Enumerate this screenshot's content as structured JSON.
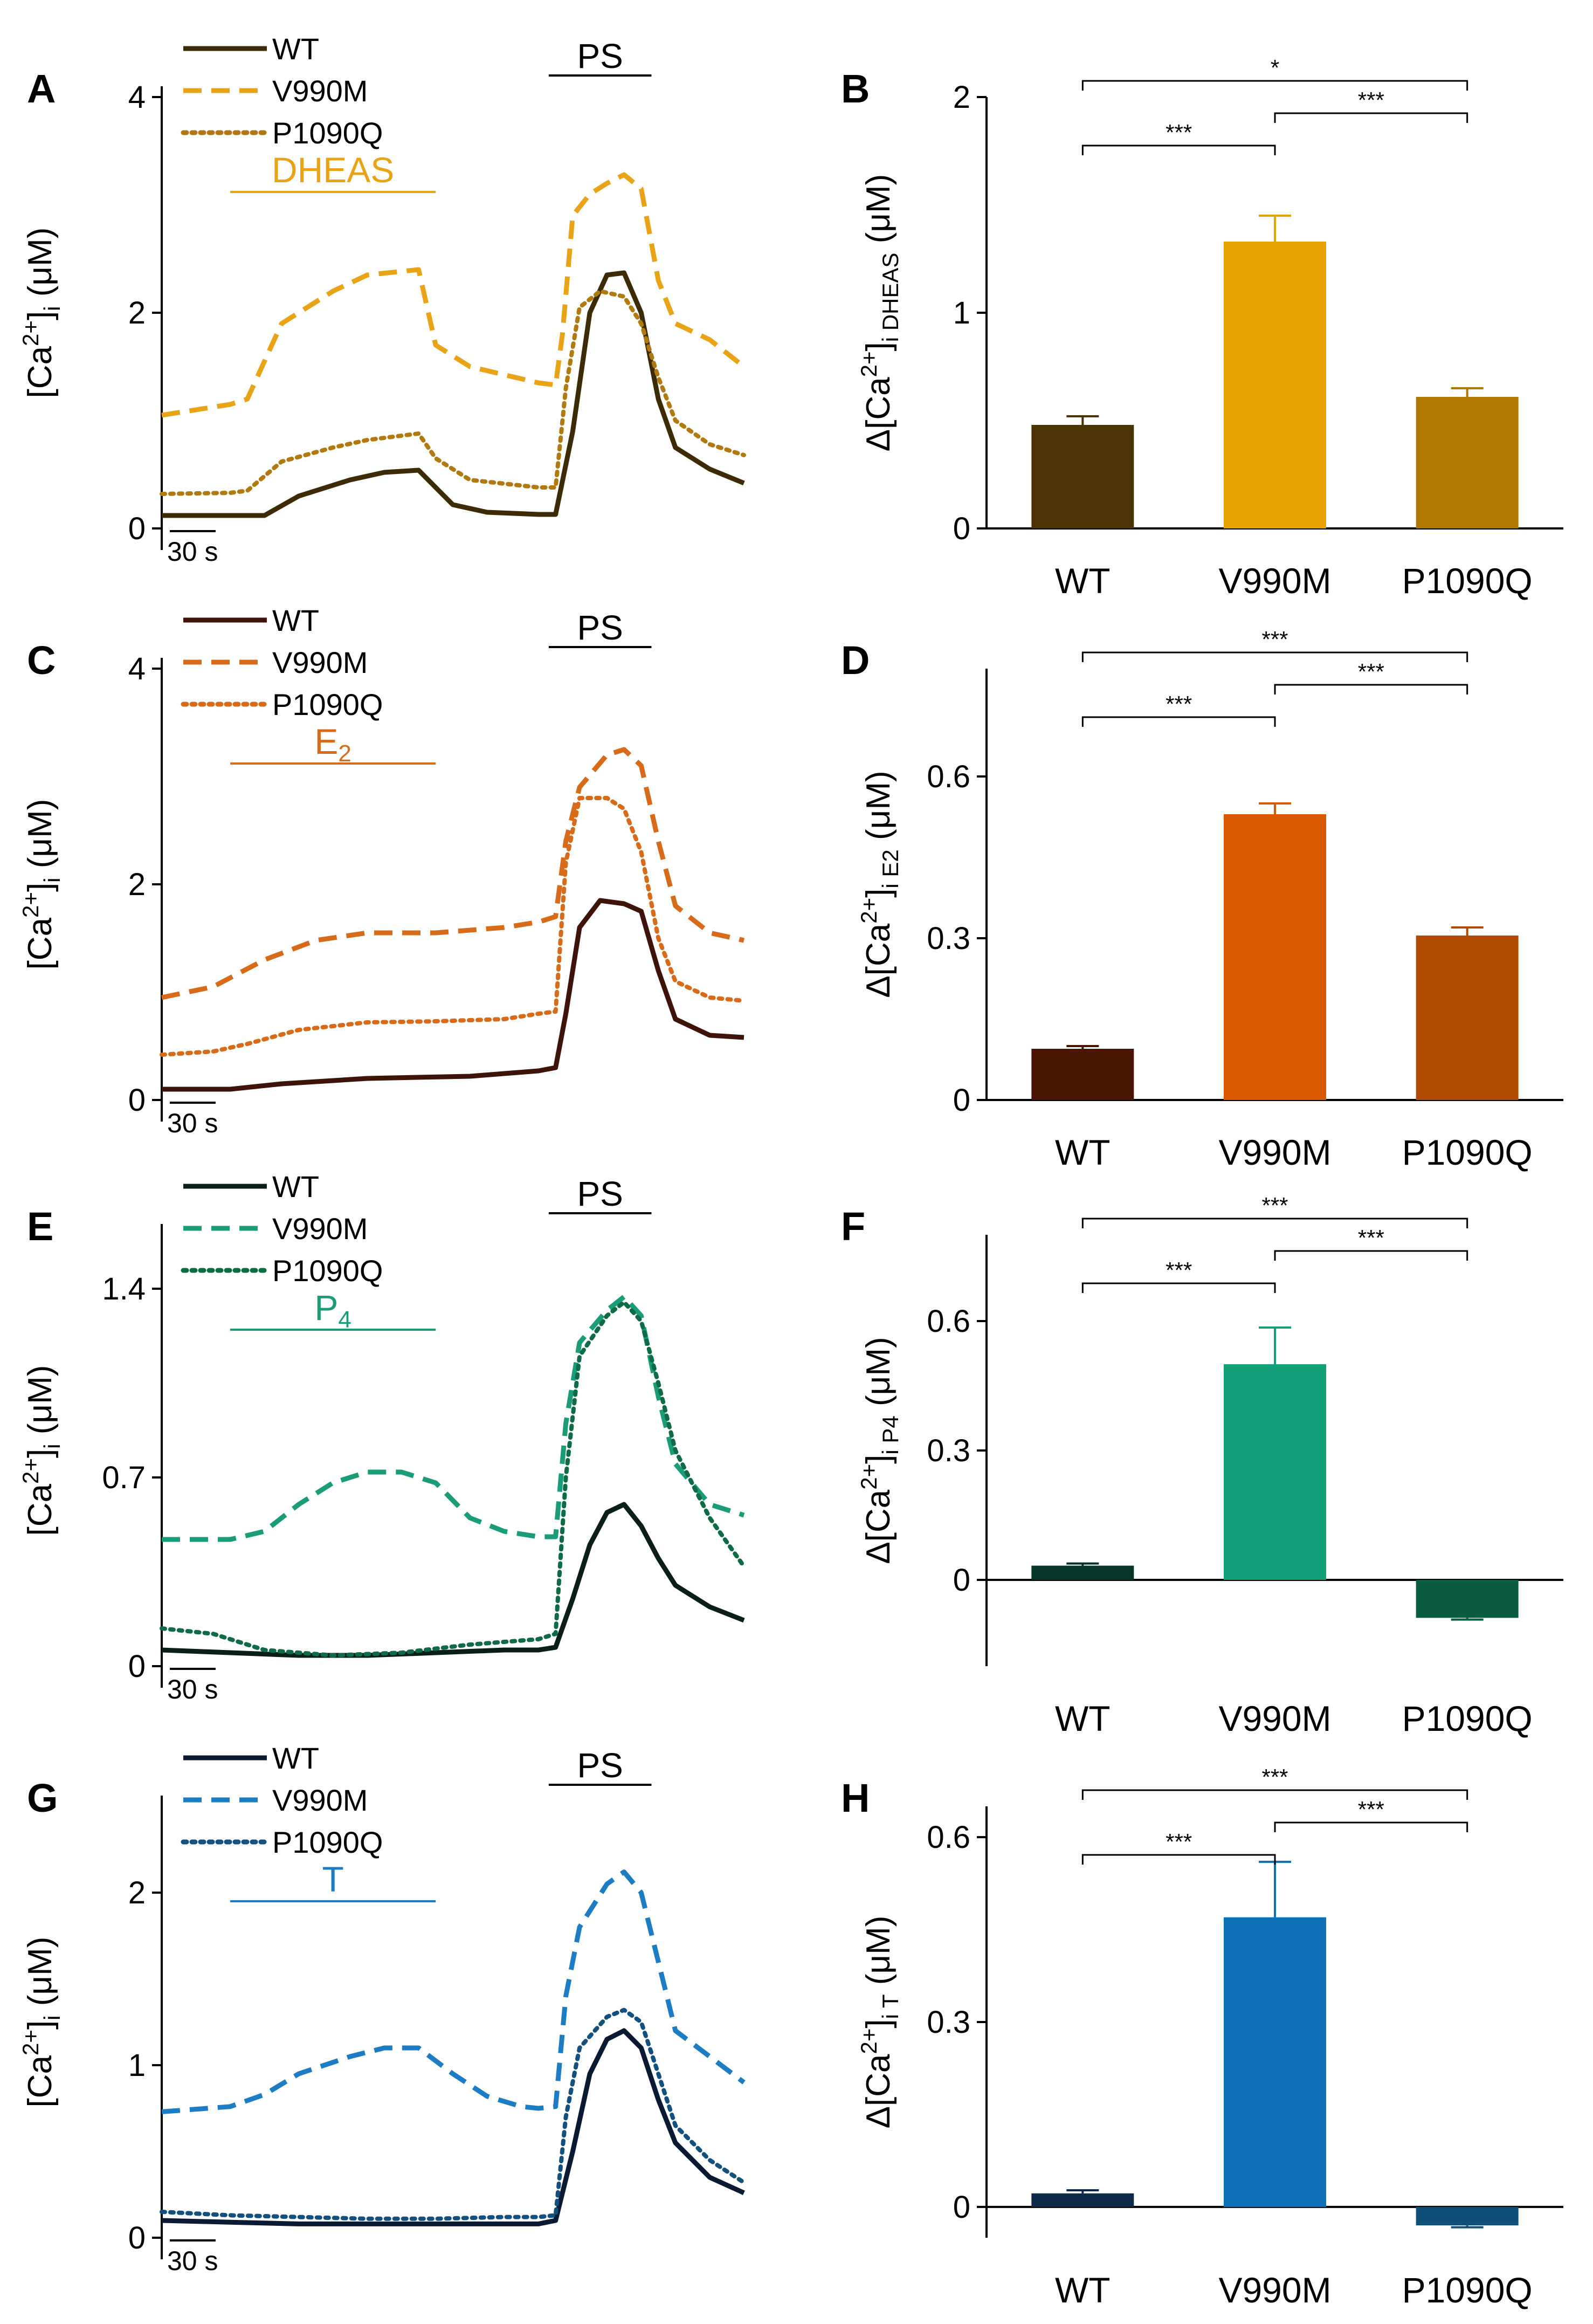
{
  "chart_data": [
    {
      "panel": "A",
      "type": "line",
      "xlabel": "",
      "scale_bar_label": "30 s",
      "ylabel": "[Ca2+]i (μM)",
      "ylim": [
        0,
        4
      ],
      "yticks": [
        0,
        2,
        4
      ],
      "stimulus": "DHEAS",
      "stimulus_color": "#e8a317",
      "ps_label": "PS",
      "legend": [
        "WT",
        "V990M",
        "P1090Q"
      ],
      "series": [
        {
          "name": "WT",
          "color": "#3d2b07",
          "dash": "solid",
          "x": [
            0,
            20,
            30,
            40,
            55,
            65,
            75,
            80,
            85,
            95,
            110,
            115,
            120,
            125,
            130,
            135,
            140,
            145,
            150,
            160,
            170
          ],
          "y": [
            0.12,
            0.12,
            0.12,
            0.3,
            0.45,
            0.52,
            0.54,
            0.38,
            0.22,
            0.15,
            0.13,
            0.13,
            0.9,
            2.0,
            2.35,
            2.37,
            2.0,
            1.2,
            0.75,
            0.55,
            0.42
          ]
        },
        {
          "name": "V990M",
          "color": "#e8a317",
          "dash": "dashed",
          "x": [
            0,
            20,
            25,
            35,
            50,
            60,
            75,
            80,
            90,
            110,
            115,
            117,
            120,
            125,
            130,
            135,
            140,
            145,
            150,
            160,
            170
          ],
          "y": [
            1.05,
            1.15,
            1.2,
            1.9,
            2.2,
            2.35,
            2.4,
            1.7,
            1.5,
            1.35,
            1.33,
            1.8,
            2.9,
            3.1,
            3.2,
            3.28,
            3.15,
            2.3,
            1.9,
            1.75,
            1.5
          ]
        },
        {
          "name": "P1090Q",
          "color": "#b07a10",
          "dash": "dotted",
          "x": [
            0,
            20,
            25,
            35,
            50,
            60,
            75,
            80,
            90,
            110,
            115,
            118,
            122,
            128,
            135,
            140,
            145,
            150,
            160,
            170
          ],
          "y": [
            0.32,
            0.33,
            0.35,
            0.62,
            0.75,
            0.82,
            0.88,
            0.65,
            0.45,
            0.38,
            0.38,
            1.3,
            2.05,
            2.2,
            2.15,
            1.9,
            1.4,
            1.0,
            0.78,
            0.68
          ]
        }
      ]
    },
    {
      "panel": "B",
      "type": "bar",
      "ylabel": "Δ[Ca2+]i DHEAS (μM)",
      "ylim": [
        0,
        2
      ],
      "yticks": [
        0,
        1,
        2
      ],
      "categories": [
        "WT",
        "V990M",
        "P1090Q"
      ],
      "values": [
        0.48,
        1.33,
        0.61
      ],
      "errors": [
        0.04,
        0.12,
        0.04
      ],
      "colors": [
        "#4a3405",
        "#e8a300",
        "#b07800"
      ],
      "significance": [
        {
          "from": 0,
          "to": 2,
          "label": "*"
        },
        {
          "from": 1,
          "to": 2,
          "label": "***"
        },
        {
          "from": 0,
          "to": 1,
          "label": "***"
        }
      ]
    },
    {
      "panel": "C",
      "type": "line",
      "xlabel": "",
      "scale_bar_label": "30 s",
      "ylabel": "[Ca2+]i (μM)",
      "ylim": [
        0,
        4
      ],
      "yticks": [
        0,
        2,
        4
      ],
      "stimulus": "E2",
      "stimulus_color": "#d86b1a",
      "ps_label": "PS",
      "legend": [
        "WT",
        "V990M",
        "P1090Q"
      ],
      "series": [
        {
          "name": "WT",
          "color": "#3d1407",
          "dash": "solid",
          "x": [
            0,
            20,
            35,
            60,
            90,
            110,
            115,
            118,
            122,
            128,
            135,
            140,
            145,
            150,
            160,
            170
          ],
          "y": [
            0.1,
            0.1,
            0.15,
            0.2,
            0.22,
            0.27,
            0.3,
            0.8,
            1.6,
            1.85,
            1.82,
            1.75,
            1.2,
            0.75,
            0.6,
            0.58
          ]
        },
        {
          "name": "V990M",
          "color": "#d86b1a",
          "dash": "dashed",
          "x": [
            0,
            15,
            30,
            45,
            60,
            80,
            100,
            110,
            115,
            118,
            122,
            130,
            135,
            140,
            145,
            150,
            160,
            170
          ],
          "y": [
            0.95,
            1.05,
            1.3,
            1.48,
            1.55,
            1.55,
            1.6,
            1.65,
            1.7,
            2.4,
            2.9,
            3.2,
            3.25,
            3.1,
            2.4,
            1.8,
            1.55,
            1.48
          ]
        },
        {
          "name": "P1090Q",
          "color": "#d86b1a",
          "dash": "dotted",
          "x": [
            0,
            15,
            25,
            40,
            60,
            80,
            100,
            110,
            115,
            118,
            122,
            130,
            135,
            140,
            145,
            150,
            160,
            170
          ],
          "y": [
            0.42,
            0.45,
            0.52,
            0.65,
            0.72,
            0.73,
            0.75,
            0.8,
            0.82,
            2.2,
            2.8,
            2.8,
            2.7,
            2.3,
            1.5,
            1.1,
            0.95,
            0.92
          ]
        }
      ]
    },
    {
      "panel": "D",
      "type": "bar",
      "ylabel": "Δ[Ca2+]i E2 (μM)",
      "ylim": [
        0,
        0.8
      ],
      "yticks": [
        0.0,
        0.3,
        0.6
      ],
      "categories": [
        "WT",
        "V990M",
        "P1090Q"
      ],
      "values": [
        0.095,
        0.53,
        0.305
      ],
      "errors": [
        0.005,
        0.02,
        0.015
      ],
      "colors": [
        "#4a1405",
        "#d95a00",
        "#b04a00"
      ],
      "significance": [
        {
          "from": 0,
          "to": 2,
          "label": "***"
        },
        {
          "from": 1,
          "to": 2,
          "label": "***"
        },
        {
          "from": 0,
          "to": 1,
          "label": "***"
        }
      ]
    },
    {
      "panel": "E",
      "type": "line",
      "xlabel": "",
      "scale_bar_label": "30 s",
      "ylabel": "[Ca2+]i (μM)",
      "ylim": [
        0,
        1.6
      ],
      "yticks": [
        0.0,
        0.7,
        1.4
      ],
      "stimulus": "P4",
      "stimulus_color": "#1a9c78",
      "ps_label": "PS",
      "legend": [
        "WT",
        "V990M",
        "P1090Q"
      ],
      "series": [
        {
          "name": "WT",
          "color": "#0a1f17",
          "dash": "solid",
          "x": [
            0,
            20,
            40,
            60,
            80,
            100,
            110,
            115,
            120,
            125,
            130,
            135,
            140,
            145,
            150,
            160,
            170
          ],
          "y": [
            0.06,
            0.05,
            0.04,
            0.04,
            0.05,
            0.06,
            0.06,
            0.07,
            0.25,
            0.45,
            0.57,
            0.6,
            0.52,
            0.4,
            0.3,
            0.22,
            0.17
          ]
        },
        {
          "name": "V990M",
          "color": "#1a9c78",
          "dash": "dashed",
          "x": [
            0,
            20,
            30,
            40,
            50,
            60,
            70,
            80,
            90,
            100,
            110,
            115,
            118,
            122,
            130,
            135,
            140,
            145,
            150,
            160,
            170
          ],
          "y": [
            0.47,
            0.47,
            0.5,
            0.6,
            0.68,
            0.72,
            0.72,
            0.68,
            0.55,
            0.5,
            0.48,
            0.48,
            0.9,
            1.2,
            1.32,
            1.37,
            1.3,
            1.0,
            0.75,
            0.6,
            0.56
          ]
        },
        {
          "name": "P1090Q",
          "color": "#0e6b45",
          "dash": "dotted",
          "x": [
            0,
            15,
            30,
            50,
            70,
            90,
            110,
            115,
            118,
            122,
            130,
            135,
            140,
            145,
            150,
            160,
            170
          ],
          "y": [
            0.14,
            0.12,
            0.06,
            0.04,
            0.05,
            0.08,
            0.1,
            0.12,
            0.7,
            1.15,
            1.3,
            1.35,
            1.28,
            1.05,
            0.8,
            0.55,
            0.37
          ]
        }
      ]
    },
    {
      "panel": "F",
      "type": "bar",
      "ylabel": "Δ[Ca2+]i P4 (μM)",
      "ylim": [
        -0.2,
        0.8
      ],
      "yticks": [
        0.0,
        0.3,
        0.6
      ],
      "categories": [
        "WT",
        "V990M",
        "P1090Q"
      ],
      "values": [
        0.033,
        0.5,
        -0.088
      ],
      "errors": [
        0.005,
        0.085,
        0.004
      ],
      "colors": [
        "#06352a",
        "#13a078",
        "#0a5c42"
      ],
      "significance": [
        {
          "from": 0,
          "to": 2,
          "label": "***"
        },
        {
          "from": 1,
          "to": 2,
          "label": "***"
        },
        {
          "from": 0,
          "to": 1,
          "label": "***"
        }
      ]
    },
    {
      "panel": "G",
      "type": "line",
      "xlabel": "",
      "scale_bar_label": "30 s",
      "ylabel": "[Ca2+]i (μM)",
      "ylim": [
        0,
        2.5
      ],
      "yticks": [
        0,
        1,
        2
      ],
      "stimulus": "T",
      "stimulus_color": "#1c7cc4",
      "ps_label": "PS",
      "legend": [
        "WT",
        "V990M",
        "P1090Q"
      ],
      "series": [
        {
          "name": "WT",
          "color": "#0a1a33",
          "dash": "solid",
          "x": [
            0,
            20,
            40,
            60,
            80,
            100,
            110,
            115,
            120,
            125,
            130,
            135,
            140,
            145,
            150,
            160,
            170
          ],
          "y": [
            0.1,
            0.09,
            0.08,
            0.08,
            0.08,
            0.08,
            0.08,
            0.1,
            0.5,
            0.95,
            1.15,
            1.2,
            1.1,
            0.8,
            0.55,
            0.35,
            0.26
          ]
        },
        {
          "name": "V990M",
          "color": "#1c7cc4",
          "dash": "dashed",
          "x": [
            0,
            20,
            30,
            40,
            55,
            65,
            75,
            85,
            95,
            105,
            110,
            115,
            118,
            122,
            130,
            135,
            140,
            145,
            150,
            160,
            170
          ],
          "y": [
            0.73,
            0.76,
            0.83,
            0.95,
            1.05,
            1.1,
            1.1,
            0.95,
            0.82,
            0.76,
            0.75,
            0.76,
            1.4,
            1.8,
            2.05,
            2.12,
            2.0,
            1.6,
            1.2,
            1.05,
            0.9
          ]
        },
        {
          "name": "P1090Q",
          "color": "#14507d",
          "dash": "dotted",
          "x": [
            0,
            20,
            40,
            60,
            80,
            100,
            110,
            115,
            118,
            122,
            130,
            135,
            140,
            145,
            150,
            160,
            170
          ],
          "y": [
            0.15,
            0.13,
            0.12,
            0.11,
            0.11,
            0.12,
            0.12,
            0.13,
            0.7,
            1.1,
            1.28,
            1.32,
            1.25,
            0.95,
            0.65,
            0.45,
            0.32
          ]
        }
      ]
    },
    {
      "panel": "H",
      "type": "bar",
      "ylabel": "Δ[Ca2+]i T (μM)",
      "ylim": [
        -0.05,
        0.65
      ],
      "yticks": [
        0.0,
        0.3,
        0.6
      ],
      "categories": [
        "WT",
        "V990M",
        "P1090Q"
      ],
      "values": [
        0.022,
        0.47,
        -0.03
      ],
      "errors": [
        0.005,
        0.09,
        0.003
      ],
      "colors": [
        "#0d2a48",
        "#0f72b8",
        "#104e7a"
      ],
      "significance": [
        {
          "from": 0,
          "to": 2,
          "label": "***"
        },
        {
          "from": 1,
          "to": 2,
          "label": "***"
        },
        {
          "from": 0,
          "to": 1,
          "label": "***"
        }
      ]
    }
  ]
}
